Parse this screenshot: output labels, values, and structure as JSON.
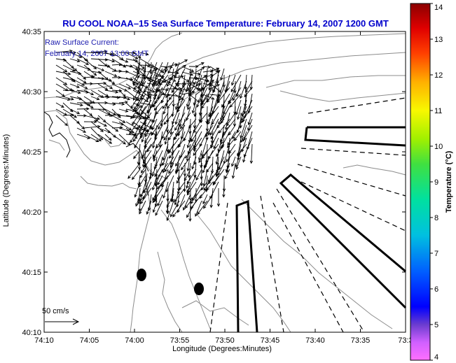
{
  "chart_data": {
    "type": "vector-field",
    "title": "RU COOL  NOAA–15  Sea Surface Temperature:  February 14, 2007 1200 GMT",
    "xlabel": "Longitude (Degrees:Minutes)",
    "ylabel": "Latitude (Degrees:Minutes)",
    "x_ticks": [
      "74:10",
      "74:05",
      "74:00",
      "73:55",
      "73:50",
      "73:45",
      "73:40",
      "73:35",
      "73:3"
    ],
    "y_ticks": [
      "40:35",
      "40:30",
      "40:25",
      "40:20",
      "40:15",
      "40:10"
    ],
    "xlim_minutes_west": [
      10,
      -30
    ],
    "ylim_minutes_north": [
      10,
      35
    ],
    "annotation": {
      "line1": "Raw Surface Current:",
      "line2": "February 14, 2007 13:00 GMT"
    },
    "scale_label": "50 cm/s",
    "colorbar": {
      "label": "Temperature (°C)",
      "ticks": [
        "14",
        "13",
        "12",
        "11",
        "10",
        "9",
        "8",
        "7",
        "6",
        "5",
        "4"
      ],
      "min": 4,
      "max": 14
    },
    "markers": [
      {
        "lon_min_w": 59,
        "lat_min_n": 14.7
      },
      {
        "lon_min_w": 53,
        "lat_min_n": 13.5
      }
    ]
  },
  "colors": {
    "title": "#0000cc",
    "annotation": "#2020b0",
    "land_contour": "#808080",
    "vectors": "#000000"
  }
}
